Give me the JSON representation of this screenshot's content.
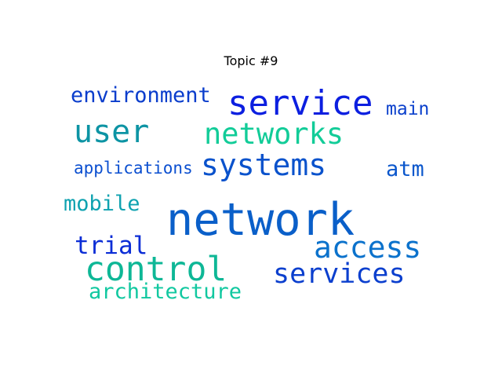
{
  "title": "Topic #9",
  "words": [
    {
      "text": "network",
      "color": "#0a5fc9"
    },
    {
      "text": "service",
      "color": "#0c1fe0"
    },
    {
      "text": "systems",
      "color": "#0a52cc"
    },
    {
      "text": "networks",
      "color": "#12cc98"
    },
    {
      "text": "user",
      "color": "#0d94a4"
    },
    {
      "text": "access",
      "color": "#0b72cc"
    },
    {
      "text": "control",
      "color": "#0eb796"
    },
    {
      "text": "services",
      "color": "#0b3fce"
    },
    {
      "text": "environment",
      "color": "#0a3dcc"
    },
    {
      "text": "architecture",
      "color": "#11c8a0"
    },
    {
      "text": "mobile",
      "color": "#0fa2b0"
    },
    {
      "text": "applications",
      "color": "#0b4fd0"
    },
    {
      "text": "atm",
      "color": "#0b57cc"
    },
    {
      "text": "trial",
      "color": "#0b2dd6"
    },
    {
      "text": "main",
      "color": "#0b40cc"
    }
  ]
}
